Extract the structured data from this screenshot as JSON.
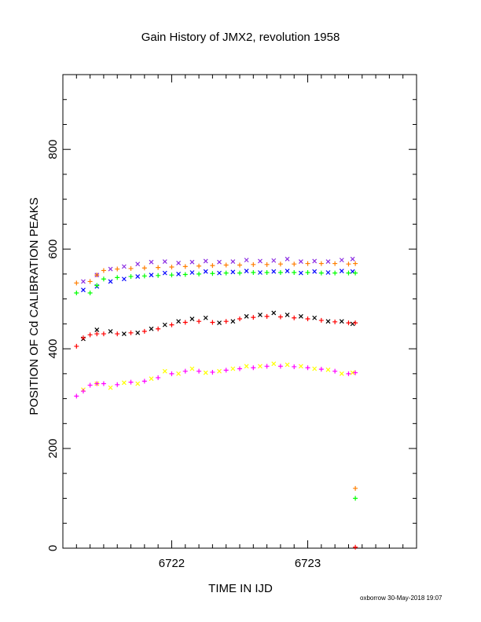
{
  "chart_data": {
    "type": "scatter",
    "title": "Gain History of JMX2, revolution 1958",
    "xlabel": "TIME IN IJD",
    "ylabel": "POSITION OF Cd CALIBRATION PEAKS",
    "xlim": [
      6721.2,
      6723.8
    ],
    "ylim": [
      0,
      950
    ],
    "x_ticks": [
      "6722",
      "6723"
    ],
    "y_ticks": [
      "0",
      "200",
      "400",
      "600",
      "800"
    ],
    "grid": false,
    "legend": "none",
    "series": [
      {
        "color": "#8a2be2",
        "marker": "x",
        "x": [
          6721.35,
          6721.45,
          6721.55,
          6721.65,
          6721.75,
          6721.85,
          6721.95,
          6722.05,
          6722.15,
          6722.25,
          6722.35,
          6722.45,
          6722.55,
          6722.65,
          6722.75,
          6722.85,
          6722.95,
          6723.05,
          6723.15,
          6723.25,
          6723.33
        ],
        "y": [
          535,
          548,
          560,
          565,
          570,
          574,
          575,
          572,
          574,
          576,
          574,
          575,
          578,
          576,
          577,
          580,
          575,
          576,
          575,
          578,
          580
        ]
      },
      {
        "color": "#0000ff",
        "marker": "x",
        "x": [
          6721.35,
          6721.45,
          6721.55,
          6721.65,
          6721.75,
          6721.85,
          6721.95,
          6722.05,
          6722.15,
          6722.25,
          6722.35,
          6722.45,
          6722.55,
          6722.65,
          6722.75,
          6722.85,
          6722.95,
          6723.05,
          6723.15,
          6723.25,
          6723.33
        ],
        "y": [
          518,
          525,
          535,
          540,
          545,
          548,
          552,
          550,
          553,
          555,
          552,
          554,
          556,
          553,
          555,
          556,
          552,
          555,
          553,
          556,
          555
        ]
      },
      {
        "color": "#ff7f00",
        "marker": "+",
        "x": [
          6721.3,
          6721.4,
          6721.45,
          6721.5,
          6721.6,
          6721.7,
          6721.8,
          6721.9,
          6722.0,
          6722.1,
          6722.2,
          6722.3,
          6722.4,
          6722.5,
          6722.6,
          6722.7,
          6722.8,
          6722.9,
          6723.0,
          6723.1,
          6723.2,
          6723.3,
          6723.35
        ],
        "y": [
          532,
          535,
          548,
          557,
          560,
          561,
          562,
          563,
          564,
          565,
          566,
          567,
          568,
          568,
          569,
          569,
          570,
          570,
          571,
          571,
          571,
          570,
          571
        ]
      },
      {
        "color": "#00ff00",
        "marker": "+",
        "x": [
          6721.3,
          6721.4,
          6721.45,
          6721.5,
          6721.6,
          6721.7,
          6721.8,
          6721.9,
          6722.0,
          6722.1,
          6722.2,
          6722.3,
          6722.4,
          6722.5,
          6722.6,
          6722.7,
          6722.8,
          6722.9,
          6723.0,
          6723.1,
          6723.2,
          6723.3,
          6723.35
        ],
        "y": [
          512,
          512,
          527,
          540,
          543,
          545,
          546,
          547,
          548,
          549,
          550,
          551,
          552,
          552,
          553,
          553,
          553,
          553,
          553,
          552,
          552,
          552,
          552
        ]
      },
      {
        "color": "#000000",
        "marker": "x",
        "x": [
          6721.35,
          6721.45,
          6721.55,
          6721.65,
          6721.75,
          6721.85,
          6721.95,
          6722.05,
          6722.15,
          6722.25,
          6722.35,
          6722.45,
          6722.55,
          6722.65,
          6722.75,
          6722.85,
          6722.95,
          6723.05,
          6723.15,
          6723.25,
          6723.33
        ],
        "y": [
          420,
          438,
          435,
          430,
          432,
          440,
          448,
          455,
          460,
          462,
          452,
          455,
          465,
          468,
          472,
          468,
          465,
          462,
          455,
          455,
          450
        ]
      },
      {
        "color": "#ff0000",
        "marker": "+",
        "x": [
          6721.3,
          6721.35,
          6721.4,
          6721.45,
          6721.5,
          6721.6,
          6721.7,
          6721.8,
          6721.9,
          6722.0,
          6722.1,
          6722.2,
          6722.3,
          6722.4,
          6722.5,
          6722.6,
          6722.7,
          6722.8,
          6722.9,
          6723.0,
          6723.1,
          6723.2,
          6723.3,
          6723.35
        ],
        "y": [
          405,
          422,
          428,
          430,
          430,
          430,
          432,
          435,
          440,
          448,
          453,
          455,
          453,
          455,
          460,
          463,
          465,
          464,
          462,
          460,
          457,
          454,
          452,
          452
        ]
      },
      {
        "color": "#ffff00",
        "marker": "x",
        "x": [
          6721.35,
          6721.45,
          6721.55,
          6721.65,
          6721.75,
          6721.85,
          6721.95,
          6722.05,
          6722.15,
          6722.25,
          6722.35,
          6722.45,
          6722.55,
          6722.65,
          6722.75,
          6722.85,
          6722.95,
          6723.05,
          6723.15,
          6723.25,
          6723.33
        ],
        "y": [
          318,
          330,
          322,
          332,
          330,
          340,
          355,
          350,
          360,
          352,
          355,
          360,
          365,
          365,
          370,
          368,
          365,
          360,
          358,
          350,
          352
        ]
      },
      {
        "color": "#ff00ff",
        "marker": "+",
        "x": [
          6721.3,
          6721.35,
          6721.4,
          6721.45,
          6721.5,
          6721.6,
          6721.7,
          6721.8,
          6721.9,
          6722.0,
          6722.1,
          6722.2,
          6722.3,
          6722.4,
          6722.5,
          6722.6,
          6722.7,
          6722.8,
          6722.9,
          6723.0,
          6723.1,
          6723.2,
          6723.3,
          6723.35
        ],
        "y": [
          305,
          315,
          327,
          330,
          330,
          328,
          333,
          335,
          342,
          350,
          355,
          355,
          353,
          357,
          360,
          362,
          365,
          365,
          364,
          362,
          359,
          355,
          350,
          352
        ]
      },
      {
        "color": "#ff7f00",
        "marker": "+",
        "x": [
          6723.35
        ],
        "y": [
          120
        ]
      },
      {
        "color": "#00ff00",
        "marker": "+",
        "x": [
          6723.35
        ],
        "y": [
          100
        ]
      },
      {
        "color": "#ff0000",
        "marker": "+",
        "x": [
          6723.35
        ],
        "y": [
          2
        ]
      }
    ]
  },
  "footer": "oxborrow 30-May-2018 19:07"
}
